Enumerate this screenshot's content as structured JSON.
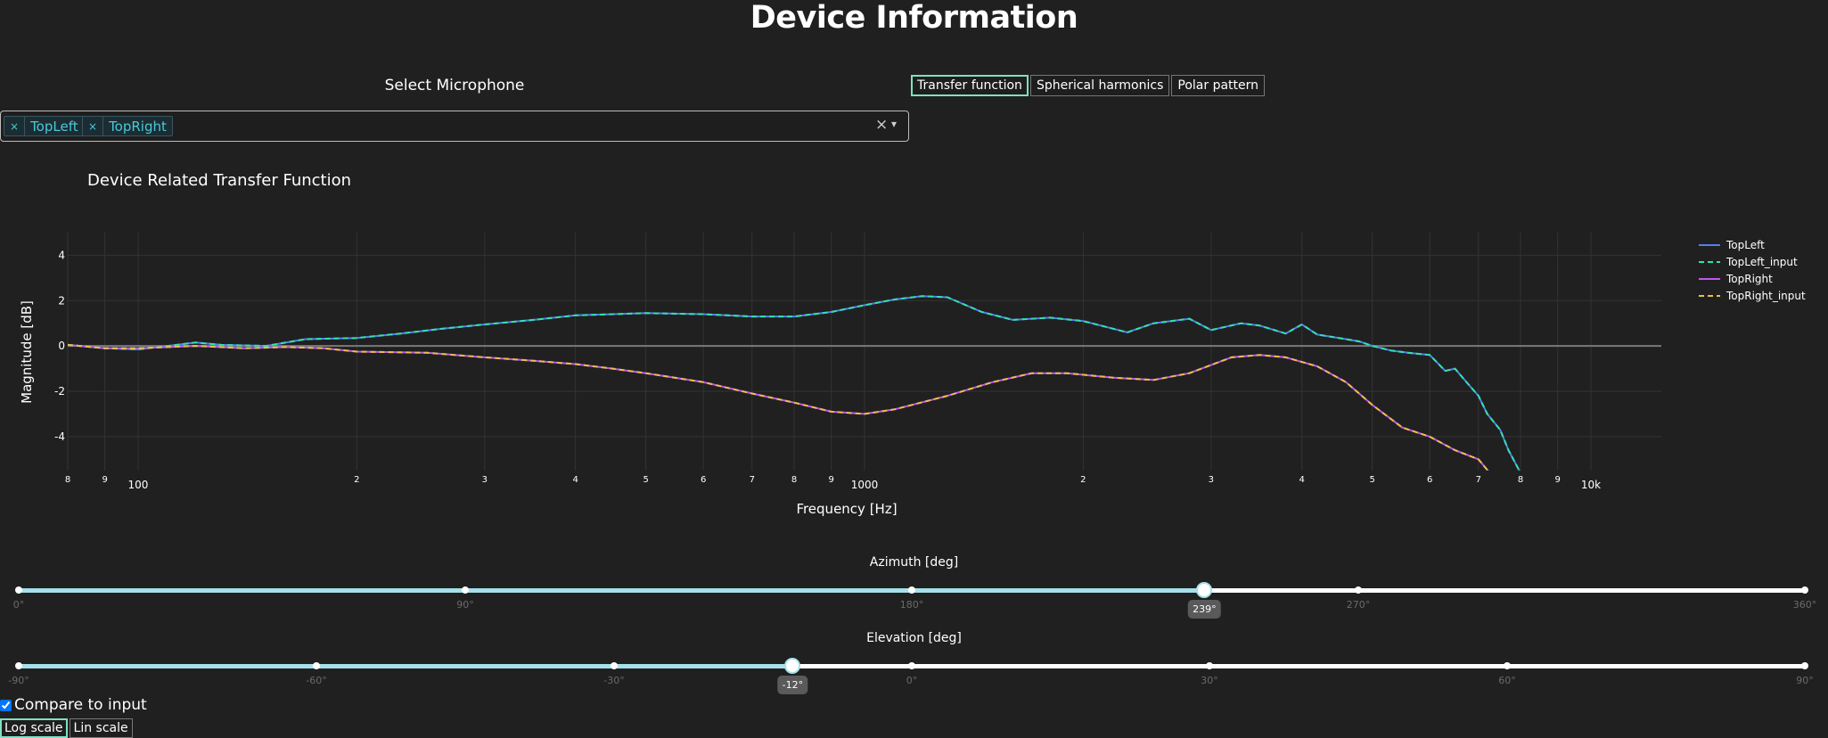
{
  "page": {
    "title": "Device Information"
  },
  "microphone_select": {
    "label": "Select Microphone",
    "selected": [
      "TopLeft",
      "TopRight"
    ],
    "remove_glyph": "×",
    "clear_glyph": "×",
    "arrow_glyph": "▾"
  },
  "tabs": [
    {
      "label": "Transfer function",
      "active": true
    },
    {
      "label": "Spherical harmonics",
      "active": false
    },
    {
      "label": "Polar pattern",
      "active": false
    }
  ],
  "chart_data": {
    "type": "line",
    "title": "Device Related Transfer Function",
    "xlabel": "Frequency [Hz]",
    "ylabel": "Magnitude [dB]",
    "x_scale": "log",
    "xlim": [
      80,
      12500
    ],
    "ylim": [
      -5.5,
      5
    ],
    "y_ticks": [
      4,
      2,
      0,
      -2,
      -4
    ],
    "x_ticks": [
      {
        "v": 80,
        "t": "8",
        "major": false
      },
      {
        "v": 90,
        "t": "9",
        "major": false
      },
      {
        "v": 100,
        "t": "100",
        "major": true
      },
      {
        "v": 200,
        "t": "2",
        "major": false
      },
      {
        "v": 300,
        "t": "3",
        "major": false
      },
      {
        "v": 400,
        "t": "4",
        "major": false
      },
      {
        "v": 500,
        "t": "5",
        "major": false
      },
      {
        "v": 600,
        "t": "6",
        "major": false
      },
      {
        "v": 700,
        "t": "7",
        "major": false
      },
      {
        "v": 800,
        "t": "8",
        "major": false
      },
      {
        "v": 900,
        "t": "9",
        "major": false
      },
      {
        "v": 1000,
        "t": "1000",
        "major": true
      },
      {
        "v": 2000,
        "t": "2",
        "major": false
      },
      {
        "v": 3000,
        "t": "3",
        "major": false
      },
      {
        "v": 4000,
        "t": "4",
        "major": false
      },
      {
        "v": 5000,
        "t": "5",
        "major": false
      },
      {
        "v": 6000,
        "t": "6",
        "major": false
      },
      {
        "v": 7000,
        "t": "7",
        "major": false
      },
      {
        "v": 8000,
        "t": "8",
        "major": false
      },
      {
        "v": 9000,
        "t": "9",
        "major": false
      },
      {
        "v": 10000,
        "t": "10k",
        "major": true
      }
    ],
    "grid": true,
    "legend_position": "top-right",
    "series": [
      {
        "name": "TopLeft",
        "color": "#5a7cf0",
        "dash": "solid",
        "x": [
          80,
          90,
          100,
          110,
          120,
          130,
          150,
          170,
          200,
          230,
          260,
          300,
          350,
          400,
          450,
          500,
          600,
          700,
          800,
          900,
          1000,
          1100,
          1200,
          1300,
          1450,
          1600,
          1800,
          2000,
          2300,
          2500,
          2800,
          3000,
          3300,
          3500,
          3800,
          4000,
          4200,
          4500,
          4800,
          5000,
          5300,
          5600,
          6000,
          6300,
          6500,
          6700,
          7000,
          7200,
          7500,
          7700,
          8000
        ],
        "y": [
          0.05,
          -0.1,
          -0.15,
          0.0,
          0.15,
          0.05,
          0.0,
          0.3,
          0.35,
          0.55,
          0.75,
          0.95,
          1.15,
          1.35,
          1.4,
          1.45,
          1.4,
          1.3,
          1.3,
          1.5,
          1.8,
          2.05,
          2.2,
          2.15,
          1.5,
          1.15,
          1.25,
          1.1,
          0.6,
          1.0,
          1.2,
          0.7,
          1.0,
          0.9,
          0.55,
          0.95,
          0.5,
          0.35,
          0.2,
          0.0,
          -0.2,
          -0.3,
          -0.4,
          -1.1,
          -1.0,
          -1.5,
          -2.2,
          -3.0,
          -3.7,
          -4.6,
          -5.6
        ]
      },
      {
        "name": "TopLeft_input",
        "color": "#2ee5a8",
        "dash": "dashed",
        "x": [
          80,
          90,
          100,
          110,
          120,
          130,
          150,
          170,
          200,
          230,
          260,
          300,
          350,
          400,
          450,
          500,
          600,
          700,
          800,
          900,
          1000,
          1100,
          1200,
          1300,
          1450,
          1600,
          1800,
          2000,
          2300,
          2500,
          2800,
          3000,
          3300,
          3500,
          3800,
          4000,
          4200,
          4500,
          4800,
          5000,
          5300,
          5600,
          6000,
          6300,
          6500,
          6700,
          7000,
          7200,
          7500,
          7700,
          8000
        ],
        "y": [
          0.05,
          -0.1,
          -0.15,
          0.0,
          0.15,
          0.05,
          0.0,
          0.3,
          0.35,
          0.55,
          0.75,
          0.95,
          1.15,
          1.35,
          1.4,
          1.45,
          1.4,
          1.3,
          1.3,
          1.5,
          1.8,
          2.05,
          2.2,
          2.15,
          1.5,
          1.15,
          1.25,
          1.1,
          0.6,
          1.0,
          1.2,
          0.7,
          1.0,
          0.9,
          0.55,
          0.95,
          0.5,
          0.35,
          0.2,
          0.0,
          -0.2,
          -0.3,
          -0.4,
          -1.1,
          -1.0,
          -1.5,
          -2.2,
          -3.0,
          -3.7,
          -4.6,
          -5.6
        ]
      },
      {
        "name": "TopRight",
        "color": "#c157ef",
        "dash": "solid",
        "x": [
          80,
          90,
          100,
          120,
          140,
          160,
          180,
          200,
          250,
          300,
          350,
          400,
          450,
          500,
          600,
          700,
          800,
          900,
          1000,
          1100,
          1300,
          1500,
          1700,
          1900,
          2200,
          2500,
          2800,
          3200,
          3500,
          3800,
          4200,
          4600,
          5000,
          5500,
          6000,
          6500,
          7000,
          7300
        ],
        "y": [
          0.05,
          -0.1,
          -0.1,
          0.0,
          -0.1,
          -0.05,
          -0.1,
          -0.25,
          -0.3,
          -0.5,
          -0.65,
          -0.8,
          -1.0,
          -1.2,
          -1.6,
          -2.1,
          -2.5,
          -2.9,
          -3.0,
          -2.8,
          -2.2,
          -1.6,
          -1.2,
          -1.2,
          -1.4,
          -1.5,
          -1.2,
          -0.5,
          -0.4,
          -0.5,
          -0.9,
          -1.6,
          -2.6,
          -3.6,
          -4.0,
          -4.6,
          -5.0,
          -5.7
        ]
      },
      {
        "name": "TopRight_input",
        "color": "#e8c14a",
        "dash": "dashed",
        "x": [
          80,
          90,
          100,
          120,
          140,
          160,
          180,
          200,
          250,
          300,
          350,
          400,
          450,
          500,
          600,
          700,
          800,
          900,
          1000,
          1100,
          1300,
          1500,
          1700,
          1900,
          2200,
          2500,
          2800,
          3200,
          3500,
          3800,
          4200,
          4600,
          5000,
          5500,
          6000,
          6500,
          7000,
          7300
        ],
        "y": [
          0.05,
          -0.1,
          -0.1,
          0.0,
          -0.1,
          -0.05,
          -0.1,
          -0.25,
          -0.3,
          -0.5,
          -0.65,
          -0.8,
          -1.0,
          -1.2,
          -1.6,
          -2.1,
          -2.5,
          -2.9,
          -3.0,
          -2.8,
          -2.2,
          -1.6,
          -1.2,
          -1.2,
          -1.4,
          -1.5,
          -1.2,
          -0.5,
          -0.4,
          -0.5,
          -0.9,
          -1.6,
          -2.6,
          -3.6,
          -4.0,
          -4.6,
          -5.0,
          -5.7
        ]
      }
    ]
  },
  "azimuth": {
    "label": "Azimuth [deg]",
    "min": 0,
    "max": 360,
    "value": 239,
    "value_label": "239°",
    "marks": [
      {
        "v": 0,
        "t": "0°"
      },
      {
        "v": 90,
        "t": "90°"
      },
      {
        "v": 180,
        "t": "180°"
      },
      {
        "v": 270,
        "t": "270°"
      },
      {
        "v": 360,
        "t": "360°"
      }
    ]
  },
  "elevation": {
    "label": "Elevation [deg]",
    "min": -90,
    "max": 90,
    "value": -12,
    "value_label": "-12°",
    "marks": [
      {
        "v": -90,
        "t": "-90°"
      },
      {
        "v": -60,
        "t": "-60°"
      },
      {
        "v": -30,
        "t": "-30°"
      },
      {
        "v": 0,
        "t": "0°"
      },
      {
        "v": 30,
        "t": "30°"
      },
      {
        "v": 60,
        "t": "60°"
      },
      {
        "v": 90,
        "t": "90°"
      }
    ]
  },
  "compare": {
    "label": "Compare to input",
    "checked": true
  },
  "scale_buttons": [
    {
      "label": "Log scale",
      "active": true
    },
    {
      "label": "Lin scale",
      "active": false
    }
  ],
  "colors": {
    "accent": "#7fe0c4",
    "slider_fill": "#a6e0ea",
    "background": "#202020"
  }
}
